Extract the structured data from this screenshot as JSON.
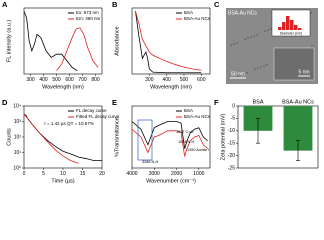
{
  "chart_data": [
    {
      "type": "line",
      "panel": "A",
      "x_label": "Wavelength (nm)",
      "y_label": "FL intensity (a.u.)",
      "xlim": [
        250,
        850
      ],
      "xticks": [
        300,
        400,
        500,
        600,
        700,
        800
      ],
      "ylim": [
        0,
        1
      ],
      "series": [
        {
          "name": "Ex: 673 nm",
          "color": "#000000",
          "x": [
            250,
            270,
            290,
            310,
            330,
            350,
            380,
            420,
            460,
            500,
            540,
            580,
            620,
            660
          ],
          "values": [
            0.95,
            0.85,
            0.5,
            0.35,
            0.45,
            0.6,
            0.55,
            0.35,
            0.25,
            0.3,
            0.3,
            0.2,
            0.1,
            0.05
          ]
        },
        {
          "name": "Em: 360 nm",
          "color": "#e02020",
          "x": [
            500,
            540,
            580,
            620,
            650,
            680,
            710,
            740,
            780,
            820
          ],
          "values": [
            0.05,
            0.15,
            0.35,
            0.55,
            0.68,
            0.7,
            0.6,
            0.4,
            0.2,
            0.1
          ]
        }
      ]
    },
    {
      "type": "line",
      "panel": "B",
      "x_label": "Wavelength (nm)",
      "y_label": "Absorbance",
      "xlim": [
        200,
        650
      ],
      "xticks": [
        300,
        400,
        500,
        600
      ],
      "ylim": [
        0,
        1.05
      ],
      "series": [
        {
          "name": "BSA",
          "color": "#000000",
          "x": [
            220,
            240,
            260,
            270,
            280,
            290,
            300,
            320,
            400,
            500,
            600
          ],
          "values": [
            1.0,
            0.6,
            0.25,
            0.3,
            0.35,
            0.25,
            0.08,
            0.03,
            0.02,
            0.02,
            0.02
          ]
        },
        {
          "name": "BSA-Au NCs",
          "color": "#e02020",
          "x": [
            220,
            240,
            260,
            280,
            300,
            320,
            350,
            400,
            450,
            500,
            550,
            600
          ],
          "values": [
            1.0,
            0.8,
            0.55,
            0.45,
            0.35,
            0.3,
            0.26,
            0.2,
            0.15,
            0.11,
            0.08,
            0.06
          ]
        }
      ]
    },
    {
      "type": "image",
      "panel": "C",
      "title": "BSA-Au NCs",
      "inset_x_label": "Diameter (nm)",
      "scale_labels": [
        "50 nm",
        "5 nm"
      ]
    },
    {
      "type": "line",
      "panel": "D",
      "x_label": "Time (µs)",
      "y_label": "Counts",
      "log_y": true,
      "xlim": [
        0,
        20
      ],
      "xticks": [
        0,
        5,
        10,
        15,
        20
      ],
      "ylim": [
        1,
        10000
      ],
      "yticks": [
        {
          "value": 1,
          "label": "10⁰"
        },
        {
          "value": 10,
          "label": "10¹"
        },
        {
          "value": 100,
          "label": "10²"
        },
        {
          "value": 1000,
          "label": "10³"
        },
        {
          "value": 10000,
          "label": "10⁴"
        }
      ],
      "annotation": "τ = 1.42 µs   QY = 10.57%",
      "series": [
        {
          "name": "FL decay curve",
          "color": "#000000",
          "x": [
            0,
            0.5,
            1,
            2,
            3,
            4,
            6,
            8,
            10,
            12,
            14,
            16,
            18,
            20
          ],
          "values": [
            3000,
            2500,
            1500,
            700,
            350,
            180,
            60,
            25,
            12,
            8,
            5,
            4,
            3,
            3
          ]
        },
        {
          "name": "Fitted FL decay curve",
          "color": "#e02020",
          "x": [
            0,
            1,
            2,
            4,
            6,
            8,
            10,
            12,
            14
          ],
          "values": [
            3000,
            1500,
            700,
            180,
            50,
            15,
            6,
            3,
            2
          ]
        }
      ]
    },
    {
      "type": "line",
      "panel": "E",
      "x_label": "Wavenumber (cm⁻¹)",
      "y_label": "%Transmittance",
      "xlim": [
        4000,
        500
      ],
      "xticks": [
        4000,
        3000,
        2000,
        1000
      ],
      "ylim": [
        20,
        100
      ],
      "annotations": [
        "3286 N-H",
        "1637 C=O",
        "1534 N-H",
        "1390 Amide I"
      ],
      "series": [
        {
          "name": "BSA",
          "color": "#000000",
          "x": [
            4000,
            3600,
            3286,
            3000,
            2800,
            2400,
            2000,
            1800,
            1637,
            1534,
            1390,
            1200,
            1000,
            800,
            600
          ],
          "values": [
            80,
            70,
            50,
            72,
            75,
            80,
            80,
            78,
            45,
            55,
            65,
            70,
            72,
            60,
            55
          ]
        },
        {
          "name": "BSA-Au NCs",
          "color": "#e02020",
          "x": [
            4000,
            3600,
            3286,
            3000,
            2800,
            2400,
            2000,
            1800,
            1637,
            1534,
            1390,
            1200,
            1000,
            800,
            600
          ],
          "values": [
            70,
            60,
            40,
            60,
            62,
            68,
            68,
            66,
            35,
            45,
            55,
            60,
            62,
            50,
            45
          ]
        }
      ]
    },
    {
      "type": "bar",
      "panel": "F",
      "y_label": "Zeta potential (mV)",
      "color": "#2e8b3e",
      "categories": [
        "BSA",
        "BSA-Au NCs"
      ],
      "values": [
        -10,
        -18
      ],
      "errors": [
        5,
        4
      ],
      "ylim": [
        -25,
        0
      ],
      "yticks": [
        0,
        -5,
        -10,
        -15,
        -20,
        -25
      ]
    }
  ]
}
